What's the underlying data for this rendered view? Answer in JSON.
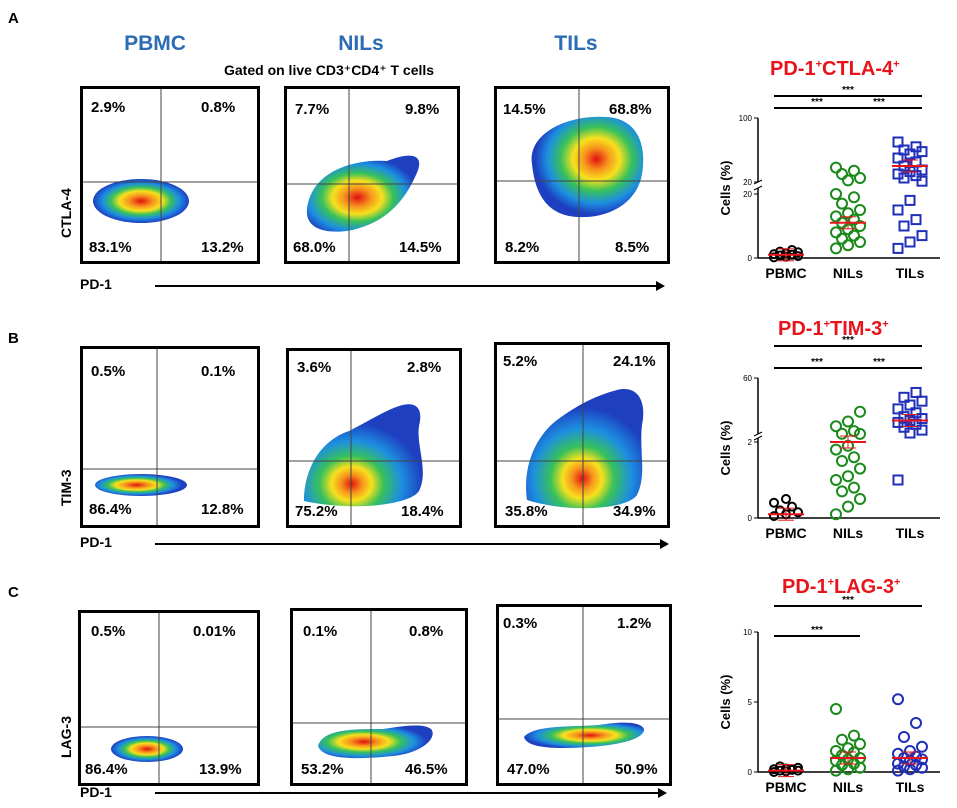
{
  "header": {
    "samples": [
      "PBMC",
      "NILs",
      "TILs"
    ],
    "gating_label": "Gated on live CD3⁺CD4⁺ T cells"
  },
  "colors": {
    "sample_header": "#2b6cb4",
    "title_red": "#e8141c",
    "pbmc": "#000000",
    "nils": "#1a8a1a",
    "tils": "#1f2fb8",
    "mean": "#e8141c"
  },
  "panels": [
    {
      "letter": "A",
      "y_marker": "CTLA-4",
      "x_marker": "PD-1",
      "facs": [
        {
          "sample": "PBMC",
          "q_ul": "2.9%",
          "q_ur": "0.8%",
          "q_ll": "83.1%",
          "q_lr": "13.2%"
        },
        {
          "sample": "NILs",
          "q_ul": "7.7%",
          "q_ur": "9.8%",
          "q_ll": "68.0%",
          "q_lr": "14.5%"
        },
        {
          "sample": "TILs",
          "q_ul": "14.5%",
          "q_ur": "68.8%",
          "q_ll": "8.2%",
          "q_lr": "8.5%"
        }
      ]
    },
    {
      "letter": "B",
      "y_marker": "TIM-3",
      "x_marker": "PD-1",
      "facs": [
        {
          "sample": "PBMC",
          "q_ul": "0.5%",
          "q_ur": "0.1%",
          "q_ll": "86.4%",
          "q_lr": "12.8%"
        },
        {
          "sample": "NILs",
          "q_ul": "3.6%",
          "q_ur": "2.8%",
          "q_ll": "75.2%",
          "q_lr": "18.4%"
        },
        {
          "sample": "TILs",
          "q_ul": "5.2%",
          "q_ur": "24.1%",
          "q_ll": "35.8%",
          "q_lr": "34.9%"
        }
      ]
    },
    {
      "letter": "C",
      "y_marker": "LAG-3",
      "x_marker": "PD-1",
      "facs": [
        {
          "sample": "PBMC",
          "q_ul": "0.5%",
          "q_ur": "0.01%",
          "q_ll": "86.4%",
          "q_lr": "13.9%"
        },
        {
          "sample": "NILs",
          "q_ul": "0.1%",
          "q_ur": "0.8%",
          "q_ll": "53.2%",
          "q_lr": "46.5%"
        },
        {
          "sample": "TILs",
          "q_ul": "0.3%",
          "q_ur": "1.2%",
          "q_ll": "47.0%",
          "q_lr": "50.9%"
        }
      ]
    }
  ],
  "chart_data": [
    {
      "type": "scatter",
      "title_main": "PD-1",
      "title_sup1": "+",
      "title_mid": "CTLA-4",
      "title_sup2": "+",
      "ylabel": "Cells (%)",
      "categories": [
        "PBMC",
        "NILs",
        "TILs"
      ],
      "y_axis_break": true,
      "y_ticks": [
        "0",
        "20",
        "20",
        "100"
      ],
      "significance": [
        "***",
        "***",
        "***"
      ],
      "series": [
        {
          "name": "PBMC",
          "mean": 1.0,
          "values": [
            0.2,
            0.4,
            0.6,
            0.8,
            1.0,
            1.2,
            1.5,
            1.8,
            2.0,
            2.5
          ]
        },
        {
          "name": "NILs",
          "mean": 11,
          "values": [
            3,
            4,
            5,
            6,
            7,
            8,
            9,
            10,
            11,
            12,
            13,
            14,
            15,
            17,
            19,
            20,
            22,
            25,
            30,
            34,
            38
          ]
        },
        {
          "name": "TILs",
          "mean": 40,
          "values": [
            3,
            5,
            7,
            10,
            12,
            15,
            18,
            21,
            25,
            28,
            30,
            33,
            35,
            40,
            45,
            50,
            55,
            58,
            60,
            64,
            70
          ]
        }
      ]
    },
    {
      "type": "scatter",
      "title_main": "PD-1",
      "title_sup1": "+",
      "title_mid": "TIM-3",
      "title_sup2": "+",
      "ylabel": "Cells (%)",
      "categories": [
        "PBMC",
        "NILs",
        "TILs"
      ],
      "y_axis_break": true,
      "y_ticks": [
        "0",
        "2",
        "60"
      ],
      "significance": [
        "***",
        "***",
        "***"
      ],
      "series": [
        {
          "name": "PBMC",
          "mean": 0.1,
          "values": [
            0.05,
            0.1,
            0.15,
            0.2,
            0.3,
            0.4,
            0.5
          ]
        },
        {
          "name": "NILs",
          "mean": 2.0,
          "values": [
            0.1,
            0.3,
            0.5,
            0.7,
            0.8,
            1.0,
            1.1,
            1.3,
            1.5,
            1.6,
            1.8,
            1.9,
            2.1,
            2.3,
            5,
            10,
            15,
            25
          ]
        },
        {
          "name": "TILs",
          "mean": 16,
          "values": [
            1.0,
            3,
            6,
            9,
            12,
            14,
            16,
            18,
            20,
            24,
            28,
            32,
            36,
            40,
            45
          ]
        }
      ]
    },
    {
      "type": "scatter",
      "title_main": "PD-1",
      "title_sup1": "+",
      "title_mid": "LAG-3",
      "title_sup2": "+",
      "ylabel": "Cells (%)",
      "categories": [
        "PBMC",
        "NILs",
        "TILs"
      ],
      "y_axis_break": false,
      "y_ticks": [
        "0",
        "5",
        "10"
      ],
      "significance": [
        "***",
        "***"
      ],
      "series": [
        {
          "name": "PBMC",
          "mean": 0.1,
          "values": [
            0.0,
            0.05,
            0.1,
            0.1,
            0.15,
            0.2,
            0.25,
            0.3,
            0.4
          ]
        },
        {
          "name": "NILs",
          "mean": 1.0,
          "values": [
            0.1,
            0.2,
            0.3,
            0.5,
            0.6,
            0.8,
            0.9,
            1.0,
            1.2,
            1.4,
            1.5,
            1.7,
            2.0,
            2.3,
            2.6,
            4.5
          ]
        },
        {
          "name": "TILs",
          "mean": 1.0,
          "values": [
            0.1,
            0.2,
            0.3,
            0.4,
            0.5,
            0.6,
            0.8,
            0.9,
            1.0,
            1.1,
            1.3,
            1.5,
            1.8,
            2.5,
            3.5,
            5.2
          ]
        }
      ]
    }
  ]
}
